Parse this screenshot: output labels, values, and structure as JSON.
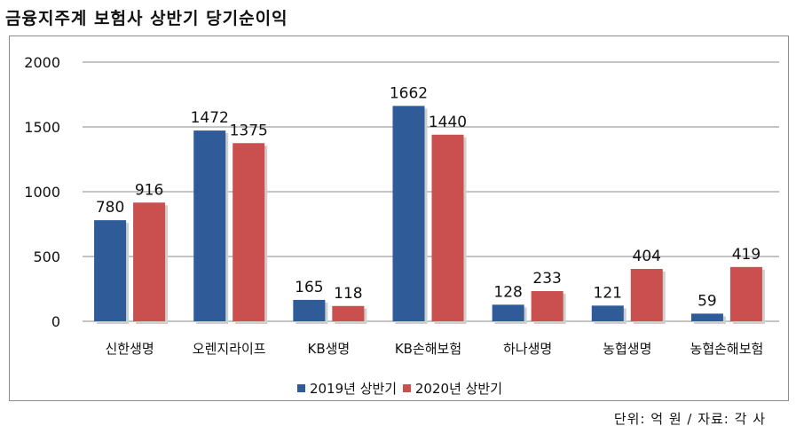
{
  "title": "금융지주계 보험사 상반기 당기순이익",
  "source_note": "단위: 억 원 / 자료: 각 사",
  "colors": {
    "series_2019": "#2f5b98",
    "series_2020": "#c9504f"
  },
  "chart_data": {
    "type": "bar",
    "categories": [
      "신한생명",
      "오렌지라이프",
      "KB생명",
      "KB손해보험",
      "하나생명",
      "농협생명",
      "농협손해보험"
    ],
    "series": [
      {
        "name": "2019년 상반기",
        "values": [
          780,
          1472,
          165,
          1662,
          128,
          121,
          59
        ]
      },
      {
        "name": "2020년 상반기",
        "values": [
          916,
          1375,
          118,
          1440,
          233,
          404,
          419
        ]
      }
    ],
    "ylim": [
      0,
      2000
    ],
    "yticks": [
      "0",
      "500",
      "1000",
      "1500",
      "2000"
    ],
    "grid": true,
    "legend_position": "bottom"
  }
}
